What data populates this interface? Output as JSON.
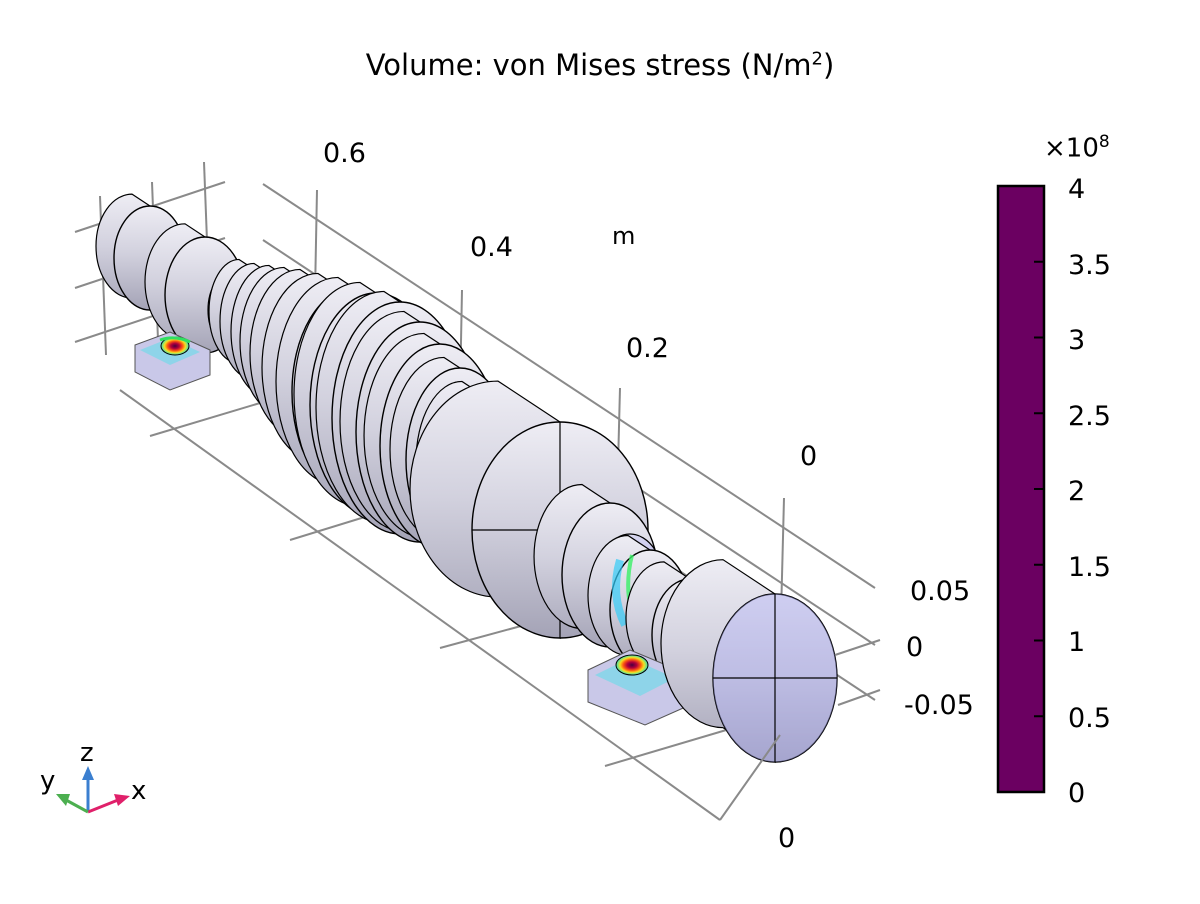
{
  "chart_data": {
    "type": "3d-volume",
    "title": "Volume: von Mises stress",
    "title_unit": "(N/m",
    "title_unit_exp": "2",
    "title_unit_close": ")",
    "x_axis": {
      "unit": "m",
      "ticks": [
        "0.6",
        "0.4",
        "0.2",
        "0"
      ]
    },
    "y_axis": {
      "ticks": [
        "0.05",
        "0",
        "-0.05"
      ]
    },
    "z_axis": {
      "ticks": [
        "0"
      ]
    },
    "colorbar": {
      "multiplier": "×10",
      "multiplier_exp": "8",
      "min": 0,
      "max": 4,
      "tick_labels": [
        "4",
        "3.5",
        "3",
        "2.5",
        "2",
        "1.5",
        "1",
        "0.5",
        "0"
      ],
      "colors": [
        "#e9e8f3",
        "#c9c6ee",
        "#9e9cf4",
        "#7b93ff",
        "#33ccf6",
        "#1de3c0",
        "#39f067",
        "#a8f21f",
        "#f6e312",
        "#ffa70a",
        "#ff4a08",
        "#e7091b",
        "#a30042",
        "#6b0061"
      ]
    },
    "triad": {
      "x": "x",
      "y": "y",
      "z": "z"
    }
  },
  "colors": {
    "surface": "#c9c8d8",
    "low_stress": "#bbbaf2",
    "grid": "#8a8a8a"
  }
}
